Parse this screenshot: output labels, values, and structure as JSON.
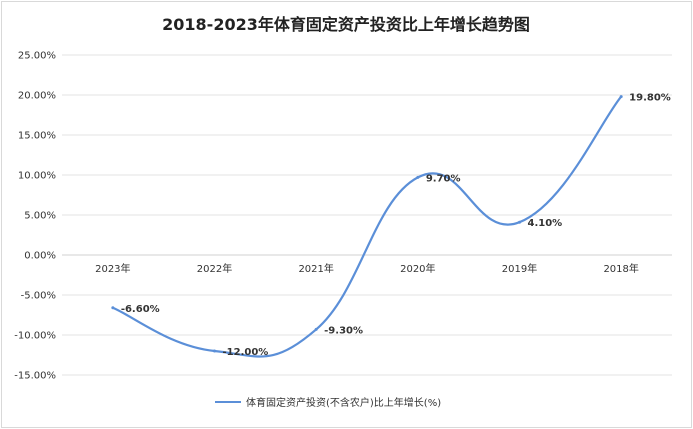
{
  "chart_data": {
    "type": "line",
    "title": "2018-2023年体育固定资产投资比上年增长趋势图",
    "categories": [
      "2023年",
      "2022年",
      "2021年",
      "2020年",
      "2019年",
      "2018年"
    ],
    "series": [
      {
        "name": "体育固定资产投资(不含农户)比上年增长(%)",
        "values": [
          -6.6,
          -12.0,
          -9.3,
          9.7,
          4.1,
          19.8
        ],
        "labels": [
          "-6.60%",
          "-12.00%",
          "-9.30%",
          "9.70%",
          "4.10%",
          "19.80%"
        ],
        "color": "#5b8fd8"
      }
    ],
    "yticks": [
      "-15.00%",
      "-10.00%",
      "-5.00%",
      "0.00%",
      "5.00%",
      "10.00%",
      "15.00%",
      "20.00%",
      "25.00%"
    ],
    "ylim": [
      -15,
      25
    ],
    "grid": true,
    "legend": "bottom",
    "smooth": true
  }
}
